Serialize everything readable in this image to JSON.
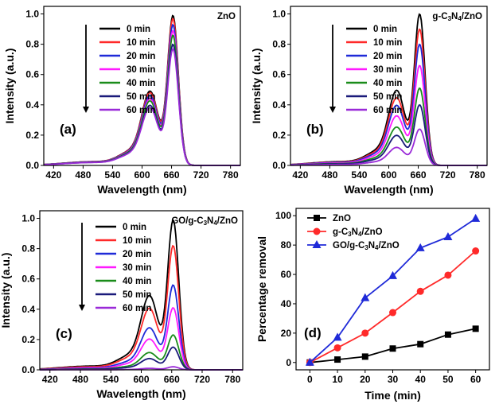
{
  "chart_data": [
    {
      "id": "a",
      "type": "line",
      "title": "ZnO",
      "panel_label": "(a)",
      "xlabel": "Wavelength (nm)",
      "ylabel": "Intensity (a.u.)",
      "xlim": [
        400,
        800
      ],
      "ylim": [
        0,
        1.05
      ],
      "xticks": [
        420,
        480,
        540,
        600,
        660,
        720,
        780
      ],
      "yticks": [
        0.0,
        0.2,
        0.4,
        0.6,
        0.8,
        1.0
      ],
      "legend_position": "top-right",
      "series": [
        {
          "name": "0 min",
          "color": "#000000",
          "peak": 0.99
        },
        {
          "name": "10 min",
          "color": "#ff2a2a",
          "peak": 0.97
        },
        {
          "name": "20 min",
          "color": "#1f2ad8",
          "peak": 0.93
        },
        {
          "name": "30 min",
          "color": "#ff1aff",
          "peak": 0.89
        },
        {
          "name": "40 min",
          "color": "#1a8c1a",
          "peak": 0.86
        },
        {
          "name": "50 min",
          "color": "#1a1a7a",
          "peak": 0.8
        },
        {
          "name": "60 min",
          "color": "#9a2ad8",
          "peak": 0.77
        }
      ]
    },
    {
      "id": "b",
      "type": "line",
      "title": "g-C3N4/ZnO",
      "panel_label": "(b)",
      "xlabel": "Wavelength (nm)",
      "ylabel": "Intensity (a.u.)",
      "xlim": [
        400,
        800
      ],
      "ylim": [
        0,
        1.05
      ],
      "xticks": [
        420,
        480,
        540,
        600,
        660,
        720,
        780
      ],
      "yticks": [
        0.0,
        0.2,
        0.4,
        0.6,
        0.8,
        1.0
      ],
      "legend_position": "top-right",
      "series": [
        {
          "name": "0 min",
          "color": "#000000",
          "peak": 1.0
        },
        {
          "name": "10 min",
          "color": "#ff2a2a",
          "peak": 0.9
        },
        {
          "name": "20 min",
          "color": "#1f2ad8",
          "peak": 0.8
        },
        {
          "name": "30 min",
          "color": "#ff1aff",
          "peak": 0.66
        },
        {
          "name": "40 min",
          "color": "#1a8c1a",
          "peak": 0.51
        },
        {
          "name": "50 min",
          "color": "#1a1a7a",
          "peak": 0.4
        },
        {
          "name": "60 min",
          "color": "#9a2ad8",
          "peak": 0.24
        }
      ]
    },
    {
      "id": "c",
      "type": "line",
      "title": "GO/g-C3N4/ZnO",
      "panel_label": "(c)",
      "xlabel": "Wavelength (nm)",
      "ylabel": "Intensity (a.u.)",
      "xlim": [
        400,
        800
      ],
      "ylim": [
        0,
        1.05
      ],
      "xticks": [
        420,
        480,
        540,
        600,
        660,
        720,
        780
      ],
      "yticks": [
        0.0,
        0.2,
        0.4,
        0.6,
        0.8,
        1.0
      ],
      "legend_position": "top-right",
      "series": [
        {
          "name": "0 min",
          "color": "#000000",
          "peak": 0.99
        },
        {
          "name": "10 min",
          "color": "#ff2a2a",
          "peak": 0.82
        },
        {
          "name": "20 min",
          "color": "#1f2ad8",
          "peak": 0.56
        },
        {
          "name": "30 min",
          "color": "#ff1aff",
          "peak": 0.41
        },
        {
          "name": "40 min",
          "color": "#1a8c1a",
          "peak": 0.23
        },
        {
          "name": "50 min",
          "color": "#1a1a7a",
          "peak": 0.15
        },
        {
          "name": "60 min",
          "color": "#9a2ad8",
          "peak": 0.02
        }
      ]
    },
    {
      "id": "d",
      "type": "line",
      "panel_label": "(d)",
      "xlabel": "Time (min)",
      "ylabel": "Percentage removal",
      "xlim": [
        -5,
        65
      ],
      "ylim": [
        -5,
        105
      ],
      "xticks": [
        0,
        10,
        20,
        30,
        40,
        50,
        60
      ],
      "yticks": [
        0,
        20,
        40,
        60,
        80,
        100
      ],
      "legend_position": "top-left",
      "x": [
        0,
        10,
        20,
        30,
        40,
        50,
        60
      ],
      "series": [
        {
          "name": "ZnO",
          "color": "#000000",
          "marker": "square",
          "values": [
            0,
            2,
            4,
            9.5,
            12.5,
            19,
            23
          ]
        },
        {
          "name": "g-C3N4/ZnO",
          "color": "#ff2a2a",
          "marker": "circle",
          "values": [
            0,
            10,
            20,
            34,
            48.5,
            59.5,
            76
          ]
        },
        {
          "name": "GO/g-C3N4/ZnO",
          "color": "#1f2ad8",
          "marker": "triangle",
          "values": [
            0,
            17,
            44,
            59,
            78,
            85.5,
            98
          ]
        }
      ]
    }
  ]
}
